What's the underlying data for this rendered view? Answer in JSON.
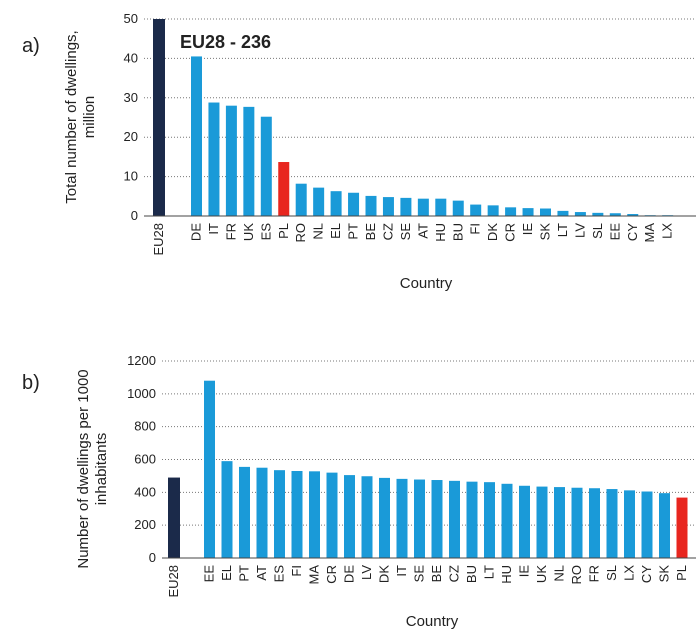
{
  "colors": {
    "aggregate": "#1b2a4a",
    "country": "#1a9ad8",
    "highlight": "#e8261f"
  },
  "charts": [
    {
      "panel_label": "a)",
      "type": "bar",
      "annotation": "EU28 - 236",
      "ylabel_lines": [
        "Total number of  dwellings,",
        "million"
      ],
      "xlabel": "Country",
      "ylim": [
        0,
        50
      ],
      "yticks": [
        0,
        10,
        20,
        30,
        40,
        50
      ],
      "grid": true,
      "aggregate": {
        "label": "EU28",
        "value": 236
      },
      "categories": [
        "DE",
        "IT",
        "FR",
        "UK",
        "ES",
        "PL",
        "RO",
        "NL",
        "EL",
        "PT",
        "BE",
        "CZ",
        "SE",
        "AT",
        "HU",
        "BU",
        "FI",
        "DK",
        "CR",
        "IE",
        "SK",
        "LT",
        "LV",
        "SL",
        "EE",
        "CY",
        "MA",
        "LX"
      ],
      "values": [
        40.5,
        28.8,
        28.0,
        27.7,
        25.2,
        13.7,
        8.2,
        7.2,
        6.3,
        5.9,
        5.1,
        4.8,
        4.6,
        4.4,
        4.4,
        3.9,
        2.9,
        2.7,
        2.2,
        2.0,
        1.9,
        1.3,
        1.0,
        0.8,
        0.7,
        0.5,
        0.2,
        0.2
      ],
      "highlight": "PL"
    },
    {
      "panel_label": "b)",
      "type": "bar",
      "annotation": "",
      "ylabel_lines": [
        "Number of dwellings per 1000",
        "inhabitants"
      ],
      "xlabel": "Country",
      "ylim": [
        0,
        1200
      ],
      "yticks": [
        0,
        200,
        400,
        600,
        800,
        1000,
        1200
      ],
      "grid": true,
      "aggregate": {
        "label": "EU28",
        "value": 490
      },
      "categories": [
        "EE",
        "EL",
        "PT",
        "AT",
        "ES",
        "FI",
        "MA",
        "CR",
        "DE",
        "LV",
        "DK",
        "IT",
        "SE",
        "BE",
        "CZ",
        "BU",
        "LT",
        "HU",
        "IE",
        "UK",
        "NL",
        "RO",
        "FR",
        "SL",
        "LX",
        "CY",
        "SK",
        "PL"
      ],
      "values": [
        1080,
        590,
        555,
        550,
        535,
        530,
        528,
        520,
        505,
        498,
        488,
        482,
        478,
        475,
        470,
        465,
        462,
        452,
        440,
        435,
        432,
        428,
        425,
        420,
        412,
        405,
        395,
        368
      ],
      "highlight": "PL"
    }
  ]
}
